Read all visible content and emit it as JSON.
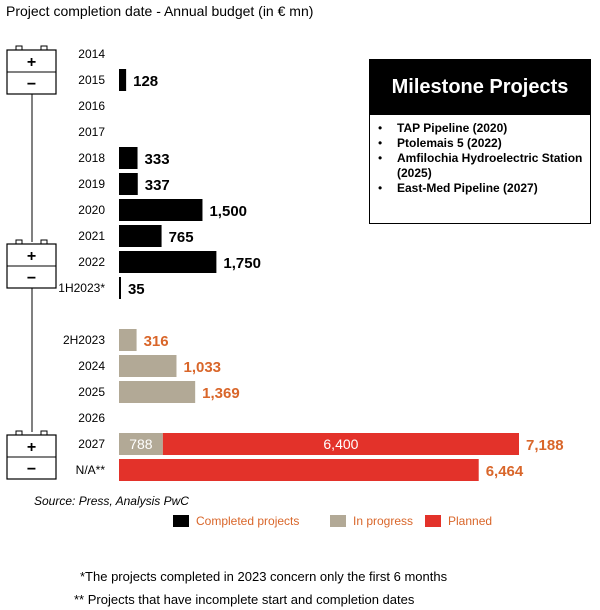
{
  "title": "Project completion date - Annual budget (in € mn)",
  "colors": {
    "completed": "#000000",
    "in_progress": "#b2a996",
    "planned": "#e3322a",
    "value_completed": "#000000",
    "value_other": "#d9662a"
  },
  "chart_data": {
    "type": "bar",
    "orientation": "horizontal",
    "stacked": true,
    "categories": [
      "2014",
      "2015",
      "2016",
      "2017",
      "2018",
      "2019",
      "2020",
      "2021",
      "2022",
      "1H2023*",
      "2H2023",
      "2024",
      "2025",
      "2026",
      "2027",
      "N/A**"
    ],
    "series": [
      {
        "name": "Completed projects",
        "values": [
          0,
          128,
          0,
          0,
          333,
          337,
          1500,
          765,
          1750,
          35,
          0,
          0,
          0,
          0,
          0,
          0
        ]
      },
      {
        "name": "In progress",
        "values": [
          0,
          0,
          0,
          0,
          0,
          0,
          0,
          0,
          0,
          0,
          316,
          1033,
          1369,
          0,
          788,
          0
        ]
      },
      {
        "name": "Planned",
        "values": [
          0,
          0,
          0,
          0,
          0,
          0,
          0,
          0,
          0,
          0,
          0,
          0,
          0,
          0,
          6400,
          6464
        ]
      }
    ],
    "segment_labels": [
      {
        "category": "2027",
        "series": "In progress",
        "text": "788"
      },
      {
        "category": "2027",
        "series": "Planned",
        "text": "6,400"
      }
    ],
    "total_labels": [
      "",
      "128",
      "",
      "",
      "333",
      "337",
      "1,500",
      "765",
      "1,750",
      "35",
      "316",
      "1,033",
      "1,369",
      "",
      "7,188",
      "6,464"
    ],
    "xlim": [
      0,
      7188
    ]
  },
  "milestones": {
    "title": "Milestone Projects",
    "items": [
      "TAP Pipeline (2020)",
      "Ptolemais 5 (2022)",
      "Amfilochia Hydroelectric Station (2025)",
      "East-Med Pipeline (2027)"
    ]
  },
  "battery_icons": {
    "plus": "+",
    "minus": "−"
  },
  "source": "Source: Press, Analysis PwC",
  "legend": [
    "Completed projects",
    "In progress",
    "Planned"
  ],
  "notes": [
    "*The projects completed in 2023 concern only the first 6 months",
    "** Projects that have incomplete start and completion dates"
  ]
}
